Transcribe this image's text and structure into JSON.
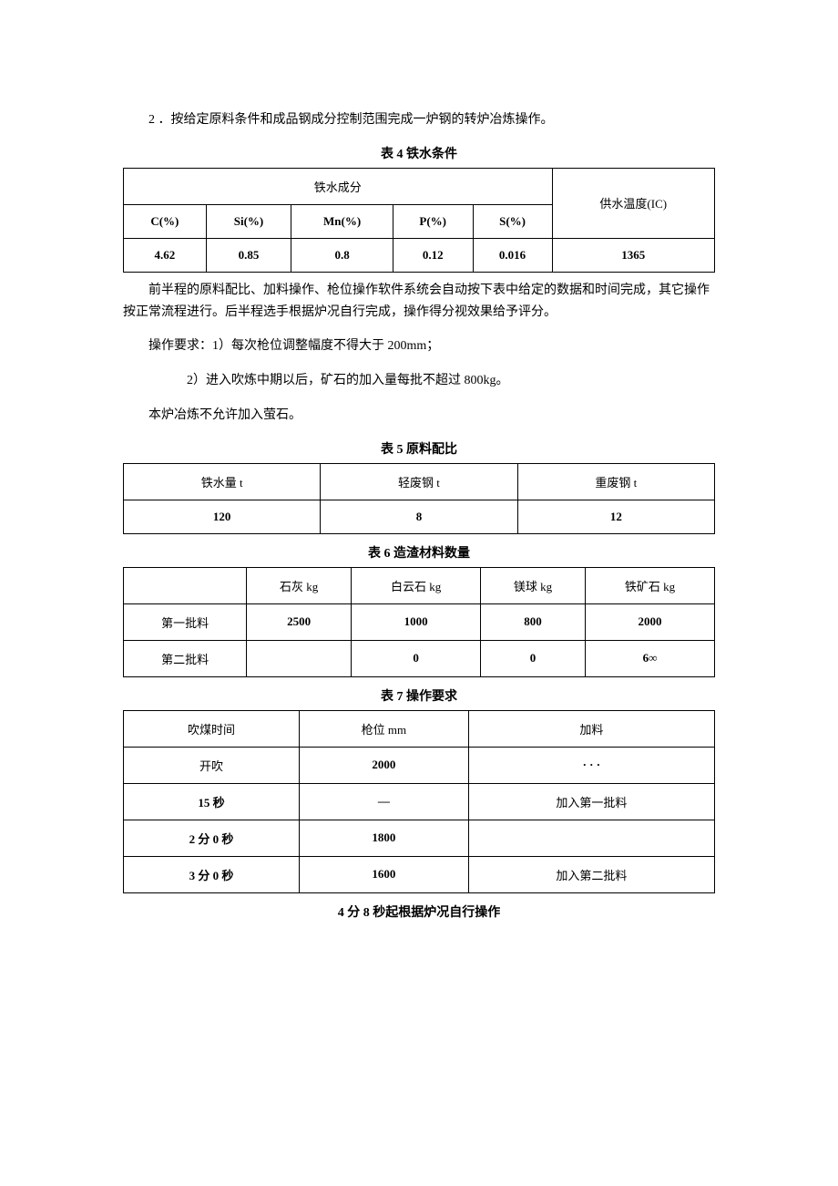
{
  "paragraphs": {
    "p1": "2 ．按给定原料条件和成品钢成分控制范围完成一炉钢的转炉冶炼操作。",
    "p2": "前半程的原料配比、加料操作、枪位操作软件系统会自动按下表中给定的数据和时间完成，其它操作按正常流程进行。后半程选手根据炉况自行完成，操作得分视效果给予评分。",
    "p3": "操作要求：1）每次枪位调整幅度不得大于 200mm；",
    "p4": "2）进入吹炼中期以后，矿石的加入量每批不超过 800kg。",
    "p5": "本炉冶炼不允许加入萤石。"
  },
  "table4": {
    "caption": "表 4 铁水条件",
    "header_group1": "铁水成分",
    "header_right": "供水温度(IC)",
    "headers": [
      "C(%)",
      "Si(%)",
      "Mn(%)",
      "P(%)",
      "S(%)"
    ],
    "row": [
      "4.62",
      "0.85",
      "0.8",
      "0.12",
      "0.016",
      "1365"
    ]
  },
  "table5": {
    "caption": "表 5 原料配比",
    "headers": [
      "铁水量 t",
      "轻废钢 t",
      "重废钢 t"
    ],
    "row": [
      "120",
      "8",
      "12"
    ]
  },
  "table6": {
    "caption": "表 6 造渣材料数量",
    "headers": [
      "",
      "石灰 kg",
      "白云石 kg",
      "镁球 kg",
      "铁矿石 kg"
    ],
    "rows": [
      [
        "第一批料",
        "2500",
        "1000",
        "800",
        "2000"
      ],
      [
        "第二批料",
        "",
        "0",
        "0",
        "6∞"
      ]
    ]
  },
  "table7": {
    "caption": "表 7 操作要求",
    "headers": [
      "吹煤时间",
      "枪位 mm",
      "加料"
    ],
    "rows": [
      [
        "开吹",
        "2000",
        "· · ·"
      ],
      [
        "15 秒",
        "—",
        "加入第一批料"
      ],
      [
        "2 分 0 秒",
        "1800",
        ""
      ],
      [
        "3 分 0 秒",
        "1600",
        "加入第二批料"
      ]
    ],
    "footer": "4 分 8 秒起根据炉况自行操作"
  }
}
